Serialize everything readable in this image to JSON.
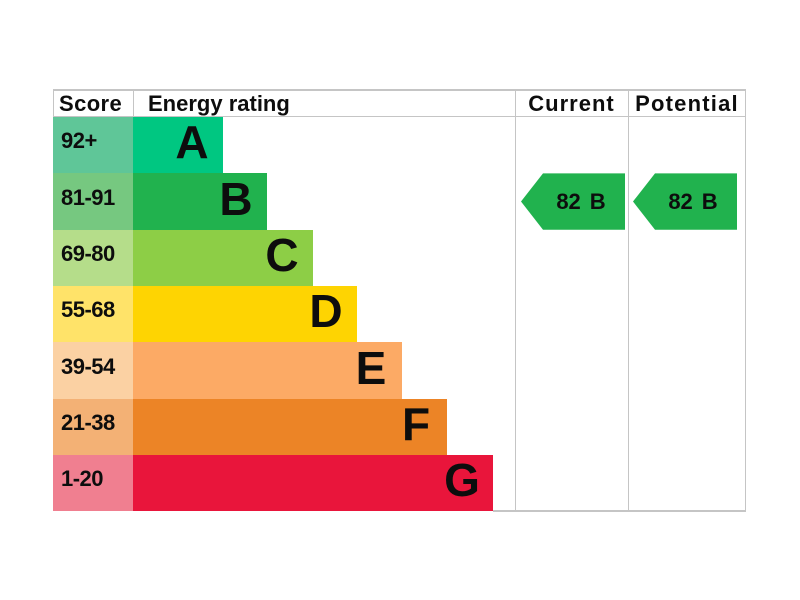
{
  "header": {
    "score": "Score",
    "energy_rating": "Energy rating",
    "current": "Current",
    "potential": "Potential"
  },
  "chart_data": {
    "type": "table",
    "title": "Energy rating chart (EPC style)",
    "columns": [
      "Score",
      "Energy rating",
      "Current",
      "Potential"
    ],
    "bands": [
      {
        "score_range": "92+",
        "letter": "A",
        "bar_color": "#00c781",
        "score_bg": "#5fc698"
      },
      {
        "score_range": "81-91",
        "letter": "B",
        "bar_color": "#21b24e",
        "score_bg": "#76c880"
      },
      {
        "score_range": "69-80",
        "letter": "C",
        "bar_color": "#8dce46",
        "score_bg": "#b5dd8a"
      },
      {
        "score_range": "55-68",
        "letter": "D",
        "bar_color": "#fed402",
        "score_bg": "#ffe369"
      },
      {
        "score_range": "39-54",
        "letter": "E",
        "bar_color": "#fcaa65",
        "score_bg": "#fbd1a3"
      },
      {
        "score_range": "21-38",
        "letter": "F",
        "bar_color": "#ec8426",
        "score_bg": "#f3b175"
      },
      {
        "score_range": "1-20",
        "letter": "G",
        "bar_color": "#e9153b",
        "score_bg": "#f07f90"
      }
    ],
    "current": {
      "value": "82",
      "band": "B",
      "arrow_color": "#21b24e"
    },
    "potential": {
      "value": "82",
      "band": "B",
      "arrow_color": "#21b24e"
    },
    "border_color": "#c5c5c5",
    "text_color": "#0d0d0d"
  }
}
